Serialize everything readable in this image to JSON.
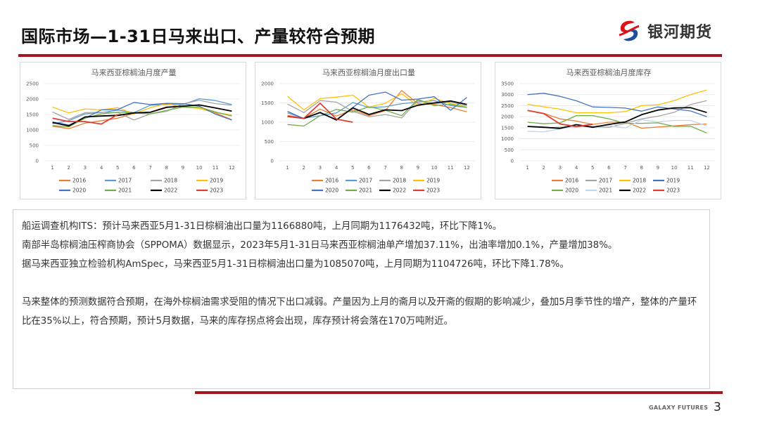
{
  "header": {
    "title": "国际市场—1-31日马来出口、产量较符合预期",
    "logo_text": "银河期货",
    "brand_colors": {
      "red": "#d7141a",
      "blue": "#1f4e9c",
      "rule": "#a3161a"
    }
  },
  "chart_data": [
    {
      "type": "line",
      "title": "马来西亚棕榈油月度产量",
      "xlabel": "",
      "ylabel": "",
      "categories": [
        "1",
        "2",
        "3",
        "4",
        "5",
        "6",
        "7",
        "8",
        "9",
        "10",
        "11",
        "12"
      ],
      "yticks": [
        0,
        500,
        1000,
        1500,
        2000,
        2500
      ],
      "ylim": [
        0,
        2500
      ],
      "grid": true,
      "legend_position": "bottom",
      "series": [
        {
          "name": "2016",
          "color": "#ed7d31",
          "values": [
            1120,
            1040,
            1220,
            1300,
            1380,
            1540,
            1580,
            1750,
            1760,
            1700,
            1550,
            1330
          ]
        },
        {
          "name": "2017",
          "color": "#5b9bd5",
          "values": [
            1200,
            1300,
            1520,
            1560,
            1640,
            1560,
            1800,
            1820,
            1820,
            2010,
            1950,
            1820
          ]
        },
        {
          "name": "2018",
          "color": "#a5a5a5",
          "values": [
            1580,
            1340,
            1560,
            1570,
            1560,
            1320,
            1520,
            1600,
            1840,
            1960,
            1850,
            1800
          ]
        },
        {
          "name": "2019",
          "color": "#ffc000",
          "values": [
            1740,
            1550,
            1680,
            1650,
            1720,
            1520,
            1720,
            1850,
            1730,
            1700,
            1570,
            1480
          ]
        },
        {
          "name": "2020",
          "color": "#4472c4",
          "values": [
            1260,
            1160,
            1380,
            1650,
            1660,
            1890,
            1820,
            1860,
            1850,
            1770,
            1510,
            1320
          ]
        },
        {
          "name": "2021",
          "color": "#70ad47",
          "values": [
            1140,
            1100,
            1380,
            1520,
            1570,
            1550,
            1520,
            1630,
            1740,
            1740,
            1580,
            1450
          ]
        },
        {
          "name": "2022",
          "color": "#000000",
          "values": [
            1240,
            1130,
            1420,
            1450,
            1470,
            1550,
            1570,
            1730,
            1770,
            1810,
            1710,
            1610
          ]
        },
        {
          "name": "2023",
          "color": "#e03c31",
          "values": [
            1380,
            1270,
            1270,
            1190,
            1500
          ]
        }
      ]
    },
    {
      "type": "line",
      "title": "马来西亚棕榈油月度出口量",
      "xlabel": "",
      "ylabel": "",
      "categories": [
        "1",
        "2",
        "3",
        "4",
        "5",
        "6",
        "7",
        "8",
        "9",
        "10",
        "11",
        "12"
      ],
      "yticks": [
        0,
        500,
        1000,
        1500,
        2000
      ],
      "ylim": [
        0,
        2000
      ],
      "grid": true,
      "legend_position": "bottom",
      "series": [
        {
          "name": "2016",
          "color": "#ed7d31",
          "values": [
            1180,
            1100,
            1340,
            1160,
            1320,
            1170,
            1300,
            1820,
            1480,
            1460,
            1380,
            1270
          ]
        },
        {
          "name": "2017",
          "color": "#5b9bd5",
          "values": [
            1240,
            1100,
            1170,
            1240,
            1510,
            1380,
            1400,
            1480,
            1520,
            1560,
            1430,
            1380
          ]
        },
        {
          "name": "2018",
          "color": "#a5a5a5",
          "values": [
            1470,
            1250,
            1560,
            1520,
            1280,
            1140,
            1200,
            1110,
            1560,
            1480,
            1520,
            1420
          ]
        },
        {
          "name": "2019",
          "color": "#ffc000",
          "values": [
            1670,
            1320,
            1610,
            1650,
            1700,
            1390,
            1490,
            1740,
            1420,
            1620,
            1480,
            1390
          ]
        },
        {
          "name": "2020",
          "color": "#4472c4",
          "values": [
            1280,
            1090,
            1260,
            1050,
            1380,
            1700,
            1780,
            1570,
            1600,
            1660,
            1310,
            1640
          ]
        },
        {
          "name": "2021",
          "color": "#70ad47",
          "values": [
            940,
            900,
            1170,
            1330,
            1260,
            1400,
            1310,
            1170,
            1590,
            1430,
            1460,
            1380
          ]
        },
        {
          "name": "2022",
          "color": "#000000",
          "values": [
            1150,
            1100,
            1250,
            1060,
            1370,
            1200,
            1320,
            1300,
            1440,
            1500,
            1550,
            1460
          ]
        },
        {
          "name": "2023",
          "color": "#e03c31",
          "values": [
            1150,
            1100,
            1490,
            1080,
            1000
          ]
        }
      ]
    },
    {
      "type": "line",
      "title": "马来西亚棕榈油月度库存",
      "xlabel": "",
      "ylabel": "",
      "categories": [
        "1",
        "2",
        "3",
        "4",
        "5",
        "6",
        "7",
        "8",
        "9",
        "10",
        "11",
        "12"
      ],
      "yticks": [
        0,
        500,
        1000,
        1500,
        2000,
        2500,
        3000,
        3500
      ],
      "ylim": [
        0,
        3500
      ],
      "grid": true,
      "legend_position": "bottom",
      "series": [
        {
          "name": "2016",
          "color": "#ed7d31",
          "values": [
            2280,
            2150,
            1900,
            1800,
            1650,
            1750,
            1760,
            1480,
            1530,
            1580,
            1640,
            1670
          ]
        },
        {
          "name": "2017",
          "color": "#a5a5a5",
          "values": [
            1560,
            1500,
            1520,
            1550,
            1550,
            1520,
            1700,
            1900,
            2020,
            2200,
            2550,
            2730
          ]
        },
        {
          "name": "2018",
          "color": "#ffc000",
          "values": [
            2560,
            2450,
            2340,
            2180,
            2180,
            2180,
            2230,
            2500,
            2540,
            2730,
            3000,
            3210
          ]
        },
        {
          "name": "2019",
          "color": "#4472c4",
          "values": [
            3000,
            3060,
            2920,
            2720,
            2440,
            2420,
            2390,
            2250,
            2440,
            2350,
            2260,
            2000
          ]
        },
        {
          "name": "2020",
          "color": "#70ad47",
          "values": [
            1750,
            1680,
            1720,
            2050,
            2050,
            1900,
            1700,
            1700,
            1720,
            1560,
            1570,
            1260
          ]
        },
        {
          "name": "2021",
          "color": "#bdd7ee",
          "values": [
            1340,
            1310,
            1450,
            1560,
            1580,
            1600,
            1490,
            1860,
            1760,
            1830,
            1830,
            1580
          ]
        },
        {
          "name": "2022",
          "color": "#000000",
          "values": [
            1560,
            1520,
            1470,
            1640,
            1520,
            1650,
            1760,
            2090,
            2300,
            2400,
            2410,
            2190
          ]
        },
        {
          "name": "2023",
          "color": "#e03c31",
          "values": [
            2280,
            2140,
            1670,
            1550,
            1660
          ]
        }
      ]
    }
  ],
  "body": {
    "paragraphs": [
      "船运调查机构ITS：预计马来西亚5月1-31日棕榈油出口量为1166880吨，上月同期为1176432吨，环比下降1%。",
      "南部半岛棕榈油压榨商协会（SPPOMA）数据显示，2023年5月1-31日马来西亚棕榈油单产增加37.11%，出油率增加0.1%，产量增加38%。",
      "据马来西亚独立检验机构AmSpec，马来西亚5月1-31日棕榈油出口量为1085070吨，上月同期为1104726吨，环比下降1.78%。"
    ],
    "summary": "马来整体的预测数据符合预期，在海外棕榈油需求受阻的情况下出口减弱。产量因为上月的斋月以及开斋的假期的影响减少，叠加5月季节性的增产，整体的产量环比在35%以上，符合预期，预计5月数据，马来的库存拐点将会出现，库存预计将会落在170万吨附近。"
  },
  "footer": {
    "brand": "GALAXY FUTURES",
    "page_number": "3"
  }
}
